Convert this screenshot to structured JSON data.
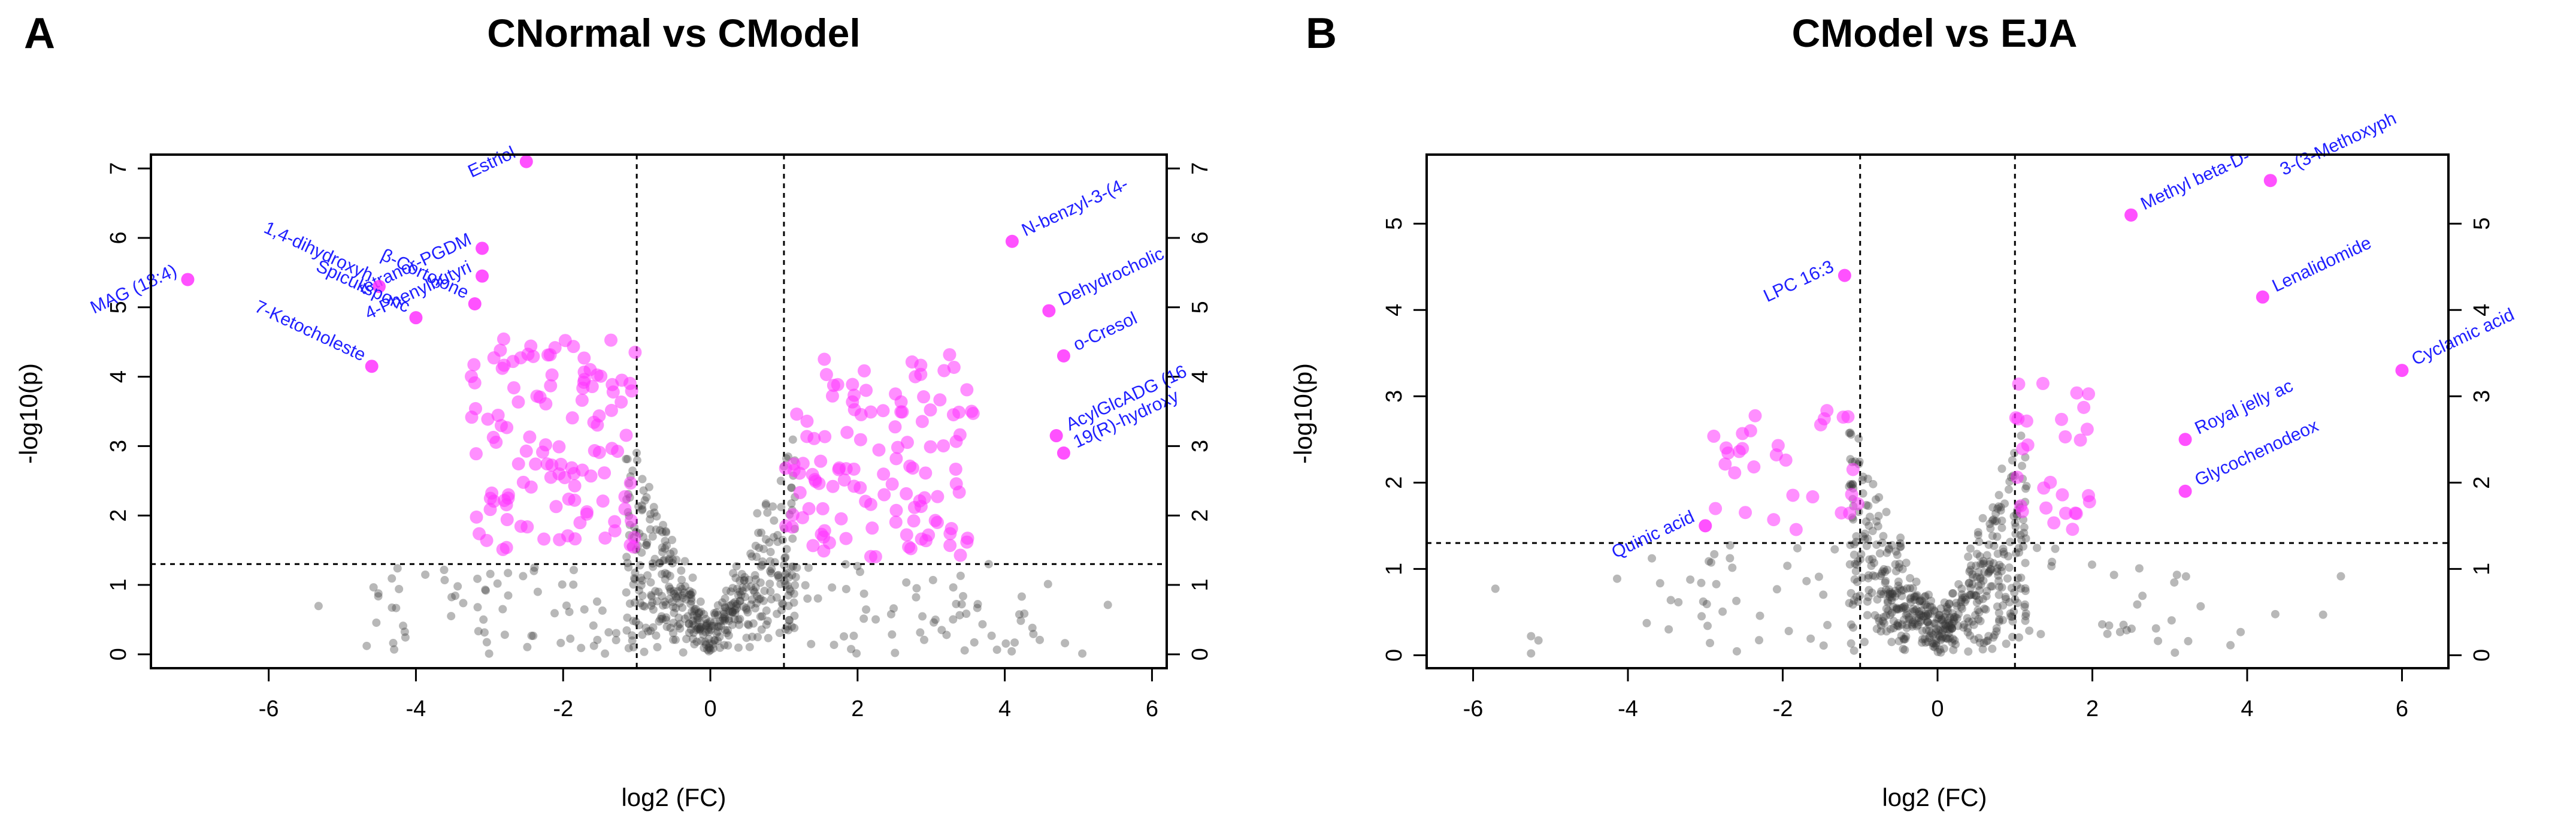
{
  "chart_data": [
    {
      "type": "scatter",
      "panel_letter": "A",
      "title": "CNormal vs CModel",
      "xlabel": "log2 (FC)",
      "ylabel": "-log10(p)",
      "xlim": [
        -7.6,
        6.2
      ],
      "ylim": [
        -0.2,
        7.2
      ],
      "xticks": [
        "-6",
        "-4",
        "-2",
        "0",
        "2",
        "4",
        "6"
      ],
      "yticks": [
        "0",
        "1",
        "2",
        "3",
        "4",
        "5",
        "6",
        "7"
      ],
      "fc_thresholds": [
        -1,
        1
      ],
      "p_threshold": 1.3,
      "colors": {
        "significant": "#ff33ff",
        "nonsignificant": "#333333",
        "label": "#1f1fff"
      },
      "labeled_points": [
        {
          "name": "Estriol",
          "x": -2.5,
          "y": 7.1
        },
        {
          "name": "tetranor-PGDM",
          "x": -3.1,
          "y": 5.85
        },
        {
          "name": "1,4-dihydroxyh",
          "x": -4.5,
          "y": 5.3
        },
        {
          "name": "4-Phenylbutyri",
          "x": -3.1,
          "y": 5.45
        },
        {
          "name": "β-Cortolone",
          "x": -3.2,
          "y": 5.05
        },
        {
          "name": "MAG (18:4)",
          "x": -7.1,
          "y": 5.4
        },
        {
          "name": "Spiculisporic",
          "x": -4.0,
          "y": 4.85
        },
        {
          "name": "7-Ketocholeste",
          "x": -4.6,
          "y": 4.15
        },
        {
          "name": "N-benzyl-3-(4-",
          "x": 4.1,
          "y": 5.95
        },
        {
          "name": "Dehydrocholic",
          "x": 4.6,
          "y": 4.95
        },
        {
          "name": "o-Cresol",
          "x": 4.8,
          "y": 4.3
        },
        {
          "name": "AcylGlcADG (16",
          "x": 4.7,
          "y": 3.15
        },
        {
          "name": "19(R)-hydroxy",
          "x": 4.8,
          "y": 2.9
        }
      ]
    },
    {
      "type": "scatter",
      "panel_letter": "B",
      "title": "CModel vs EJA",
      "xlabel": "log2 (FC)",
      "ylabel": "-log10(p)",
      "xlim": [
        -6.6,
        6.6
      ],
      "ylim": [
        -0.15,
        5.8
      ],
      "xticks": [
        "-6",
        "-4",
        "-2",
        "0",
        "2",
        "4",
        "6"
      ],
      "yticks": [
        "0",
        "1",
        "2",
        "3",
        "4",
        "5"
      ],
      "fc_thresholds": [
        -1,
        1
      ],
      "p_threshold": 1.3,
      "colors": {
        "significant": "#ff33ff",
        "nonsignificant": "#333333",
        "label": "#1f1fff"
      },
      "labeled_points": [
        {
          "name": "LPC 16:3",
          "x": -1.2,
          "y": 4.4
        },
        {
          "name": "Quinic acid",
          "x": -3.0,
          "y": 1.5
        },
        {
          "name": "Methyl beta-D-",
          "x": 2.5,
          "y": 5.1
        },
        {
          "name": "3-(3-Methoxyph",
          "x": 4.3,
          "y": 5.5
        },
        {
          "name": "Lenalidomide",
          "x": 4.2,
          "y": 4.15
        },
        {
          "name": "Cyclamic acid",
          "x": 6.0,
          "y": 3.3
        },
        {
          "name": "Royal jelly ac",
          "x": 3.2,
          "y": 2.5
        },
        {
          "name": "Glycochenodeox",
          "x": 3.2,
          "y": 1.9
        }
      ]
    }
  ]
}
